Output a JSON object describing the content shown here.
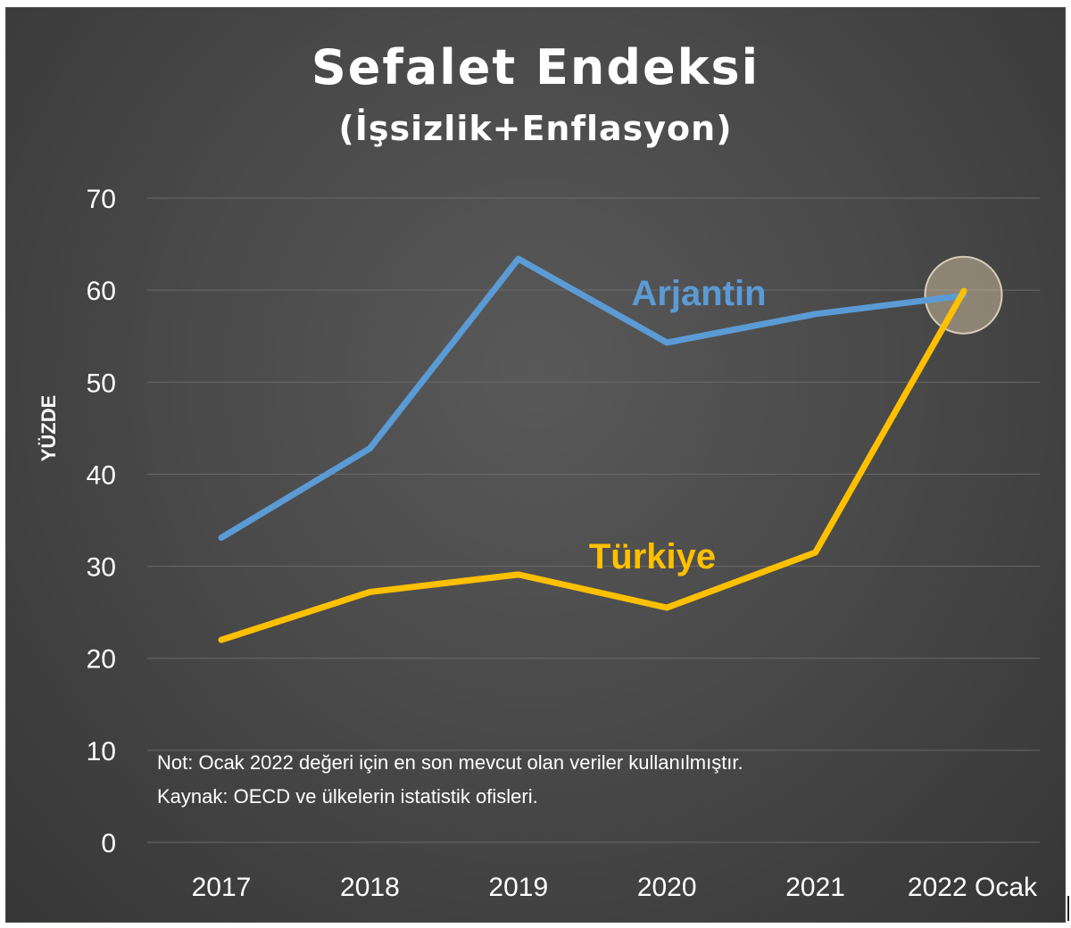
{
  "title": "Sefalet Endeksi",
  "subtitle": "(İşsizlik+Enflasyon)",
  "notes": {
    "note": "Not: Ocak 2022 değeri için en son mevcut olan veriler kullanılmıştır.",
    "source": "Kaynak: OECD ve ülkelerin istatistik ofisleri."
  },
  "colors": {
    "arjantin": "#5b9bd5",
    "turkiye": "#ffc000",
    "gridline": "#6a6a6a",
    "highlight": "#c8b89a"
  },
  "chart_data": {
    "type": "line",
    "title": "Sefalet Endeksi",
    "subtitle": "(İşsizlik+Enflasyon)",
    "xlabel": "",
    "ylabel": "YÜZDE",
    "categories": [
      "2017",
      "2018",
      "2019",
      "2020",
      "2021",
      "2022 Ocak"
    ],
    "ylim": [
      0,
      70
    ],
    "yticks": [
      0,
      10,
      20,
      30,
      40,
      50,
      60,
      70
    ],
    "grid": true,
    "series": [
      {
        "name": "Arjantin",
        "values": [
          33.1,
          42.8,
          63.4,
          54.3,
          57.4,
          59.4
        ]
      },
      {
        "name": "Türkiye",
        "values": [
          22.0,
          27.2,
          29.1,
          25.5,
          31.5,
          59.9
        ]
      }
    ],
    "annotations": [
      "highlight circle at 2022 Ocak where the two series meet"
    ]
  }
}
